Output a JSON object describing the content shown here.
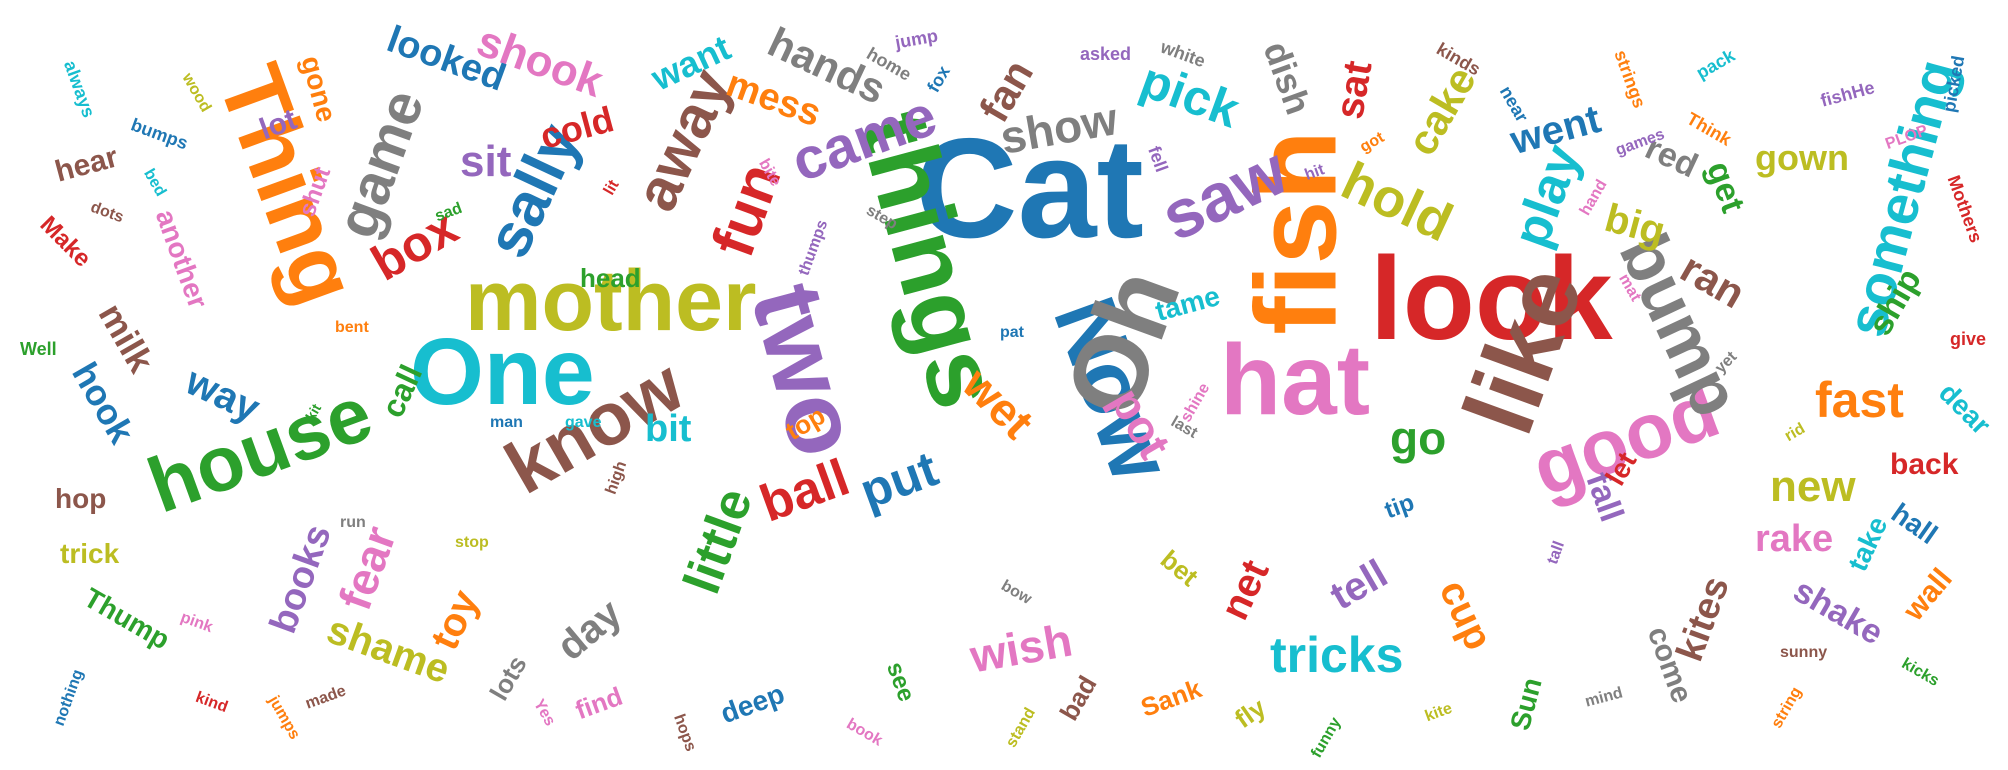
{
  "colors": {
    "blue": "#1f77b4",
    "orange": "#ff7f0e",
    "green": "#2ca02c",
    "red": "#d62728",
    "purple": "#9467bd",
    "brown": "#8c564b",
    "pink": "#e377c2",
    "gray": "#7f7f7f",
    "olive": "#bcbd22",
    "cyan": "#17becf"
  },
  "words": [
    {
      "text": "Cat",
      "color": "blue"
    },
    {
      "text": "things",
      "color": "green"
    },
    {
      "text": "fish",
      "color": "orange"
    },
    {
      "text": "look",
      "color": "red"
    },
    {
      "text": "mother",
      "color": "olive"
    },
    {
      "text": "Thing",
      "color": "orange"
    },
    {
      "text": "hat",
      "color": "pink"
    },
    {
      "text": "One",
      "color": "cyan"
    },
    {
      "text": "two",
      "color": "purple"
    },
    {
      "text": "Now",
      "color": "blue"
    },
    {
      "text": "Oh",
      "color": "gray"
    },
    {
      "text": "like",
      "color": "brown"
    },
    {
      "text": "house",
      "color": "green"
    },
    {
      "text": "know",
      "color": "brown"
    },
    {
      "text": "good",
      "color": "pink"
    },
    {
      "text": "bump",
      "color": "gray"
    },
    {
      "text": "saw",
      "color": "purple"
    },
    {
      "text": "something",
      "color": "cyan"
    },
    {
      "text": "sally",
      "color": "blue"
    },
    {
      "text": "game",
      "color": "gray"
    },
    {
      "text": "away",
      "color": "brown"
    },
    {
      "text": "came",
      "color": "purple"
    },
    {
      "text": "fun",
      "color": "red"
    },
    {
      "text": "box",
      "color": "red"
    },
    {
      "text": "little",
      "color": "green"
    },
    {
      "text": "hold",
      "color": "olive"
    },
    {
      "text": "play",
      "color": "cyan"
    },
    {
      "text": "put",
      "color": "blue"
    },
    {
      "text": "ball",
      "color": "red"
    },
    {
      "text": "show",
      "color": "gray"
    },
    {
      "text": "pick",
      "color": "cyan"
    },
    {
      "text": "wet",
      "color": "orange"
    },
    {
      "text": "pot",
      "color": "pink"
    },
    {
      "text": "fast",
      "color": "orange"
    },
    {
      "text": "tricks",
      "color": "cyan"
    },
    {
      "text": "cake",
      "color": "olive"
    },
    {
      "text": "ran",
      "color": "brown"
    },
    {
      "text": "big",
      "color": "olive"
    },
    {
      "text": "went",
      "color": "blue"
    },
    {
      "text": "fear",
      "color": "pink"
    },
    {
      "text": "new",
      "color": "olive"
    },
    {
      "text": "wish",
      "color": "pink"
    },
    {
      "text": "go",
      "color": "green"
    },
    {
      "text": "shook",
      "color": "pink"
    },
    {
      "text": "hands",
      "color": "gray"
    },
    {
      "text": "mess",
      "color": "orange"
    },
    {
      "text": "looked",
      "color": "blue"
    },
    {
      "text": "fan",
      "color": "brown"
    },
    {
      "text": "sit",
      "color": "purple"
    },
    {
      "text": "cold",
      "color": "red"
    },
    {
      "text": "want",
      "color": "cyan"
    },
    {
      "text": "sat",
      "color": "red"
    },
    {
      "text": "dish",
      "color": "gray"
    },
    {
      "text": "way",
      "color": "blue"
    },
    {
      "text": "milk",
      "color": "brown"
    },
    {
      "text": "hook",
      "color": "blue"
    },
    {
      "text": "books",
      "color": "purple"
    },
    {
      "text": "toy",
      "color": "orange"
    },
    {
      "text": "shame",
      "color": "olive"
    },
    {
      "text": "day",
      "color": "gray"
    },
    {
      "text": "bit",
      "color": "cyan"
    },
    {
      "text": "net",
      "color": "red"
    },
    {
      "text": "tell",
      "color": "purple"
    },
    {
      "text": "cup",
      "color": "orange"
    },
    {
      "text": "rake",
      "color": "pink"
    },
    {
      "text": "kites",
      "color": "brown"
    },
    {
      "text": "shake",
      "color": "purple"
    },
    {
      "text": "back",
      "color": "red"
    },
    {
      "text": "ship",
      "color": "green"
    },
    {
      "text": "get",
      "color": "green"
    },
    {
      "text": "gown",
      "color": "olive"
    },
    {
      "text": "red",
      "color": "gray"
    },
    {
      "text": "call",
      "color": "green"
    },
    {
      "text": "lot",
      "color": "purple"
    },
    {
      "text": "hear",
      "color": "brown"
    },
    {
      "text": "gone",
      "color": "orange"
    },
    {
      "text": "another",
      "color": "pink"
    },
    {
      "text": "Make",
      "color": "red"
    },
    {
      "text": "head",
      "color": "green"
    },
    {
      "text": "tame",
      "color": "cyan"
    },
    {
      "text": "top",
      "color": "orange"
    },
    {
      "text": "lots",
      "color": "gray"
    },
    {
      "text": "find",
      "color": "pink"
    },
    {
      "text": "deep",
      "color": "blue"
    },
    {
      "text": "see",
      "color": "green"
    },
    {
      "text": "bad",
      "color": "brown"
    },
    {
      "text": "Sank",
      "color": "orange"
    },
    {
      "text": "fly",
      "color": "olive"
    },
    {
      "text": "come",
      "color": "gray"
    },
    {
      "text": "Sun",
      "color": "green"
    },
    {
      "text": "bet",
      "color": "olive"
    },
    {
      "text": "tip",
      "color": "blue"
    },
    {
      "text": "fall",
      "color": "purple"
    },
    {
      "text": "let",
      "color": "red"
    },
    {
      "text": "take",
      "color": "cyan"
    },
    {
      "text": "hall",
      "color": "blue"
    },
    {
      "text": "wall",
      "color": "orange"
    },
    {
      "text": "dear",
      "color": "cyan"
    },
    {
      "text": "hop",
      "color": "brown"
    },
    {
      "text": "trick",
      "color": "olive"
    },
    {
      "text": "Thump",
      "color": "green"
    },
    {
      "text": "shut",
      "color": "pink"
    },
    {
      "text": "jump",
      "color": "purple"
    },
    {
      "text": "home",
      "color": "gray"
    },
    {
      "text": "fox",
      "color": "blue"
    },
    {
      "text": "asked",
      "color": "purple"
    },
    {
      "text": "white",
      "color": "gray"
    },
    {
      "text": "kinds",
      "color": "brown"
    },
    {
      "text": "near",
      "color": "blue"
    },
    {
      "text": "strings",
      "color": "orange"
    },
    {
      "text": "pack",
      "color": "cyan"
    },
    {
      "text": "picked",
      "color": "blue"
    },
    {
      "text": "fishHe",
      "color": "purple"
    },
    {
      "text": "Think",
      "color": "orange"
    },
    {
      "text": "games",
      "color": "purple"
    },
    {
      "text": "PLOP",
      "color": "pink"
    },
    {
      "text": "Mothers",
      "color": "red"
    },
    {
      "text": "give",
      "color": "red"
    },
    {
      "text": "always",
      "color": "cyan"
    },
    {
      "text": "wood",
      "color": "olive"
    },
    {
      "text": "bumps",
      "color": "blue"
    },
    {
      "text": "bed",
      "color": "cyan"
    },
    {
      "text": "dots",
      "color": "brown"
    },
    {
      "text": "Well",
      "color": "green"
    },
    {
      "text": "bent",
      "color": "orange"
    },
    {
      "text": "kit",
      "color": "green"
    },
    {
      "text": "man",
      "color": "blue"
    },
    {
      "text": "gave",
      "color": "cyan"
    },
    {
      "text": "high",
      "color": "brown"
    },
    {
      "text": "run",
      "color": "gray"
    },
    {
      "text": "stop",
      "color": "olive"
    },
    {
      "text": "pink",
      "color": "pink"
    },
    {
      "text": "nothing",
      "color": "blue"
    },
    {
      "text": "kind",
      "color": "red"
    },
    {
      "text": "jumps",
      "color": "orange"
    },
    {
      "text": "made",
      "color": "brown"
    },
    {
      "text": "Yes",
      "color": "pink"
    },
    {
      "text": "hops",
      "color": "brown"
    },
    {
      "text": "book",
      "color": "pink"
    },
    {
      "text": "stand",
      "color": "olive"
    },
    {
      "text": "funny",
      "color": "green"
    },
    {
      "text": "kite",
      "color": "olive"
    },
    {
      "text": "mind",
      "color": "gray"
    },
    {
      "text": "string",
      "color": "orange"
    },
    {
      "text": "kicks",
      "color": "green"
    },
    {
      "text": "sunny",
      "color": "brown"
    },
    {
      "text": "bow",
      "color": "gray"
    },
    {
      "text": "tall",
      "color": "purple"
    },
    {
      "text": "yet",
      "color": "gray"
    },
    {
      "text": "rid",
      "color": "olive"
    },
    {
      "text": "last",
      "color": "gray"
    },
    {
      "text": "shine",
      "color": "pink"
    },
    {
      "text": "pat",
      "color": "blue"
    },
    {
      "text": "hit",
      "color": "purple"
    },
    {
      "text": "got",
      "color": "orange"
    },
    {
      "text": "fell",
      "color": "purple"
    },
    {
      "text": "hand",
      "color": "pink"
    },
    {
      "text": "mat",
      "color": "pink"
    },
    {
      "text": "step",
      "color": "gray"
    },
    {
      "text": "thumps",
      "color": "purple"
    },
    {
      "text": "bite",
      "color": "pink"
    },
    {
      "text": "lit",
      "color": "red"
    },
    {
      "text": "sad",
      "color": "green"
    }
  ]
}
